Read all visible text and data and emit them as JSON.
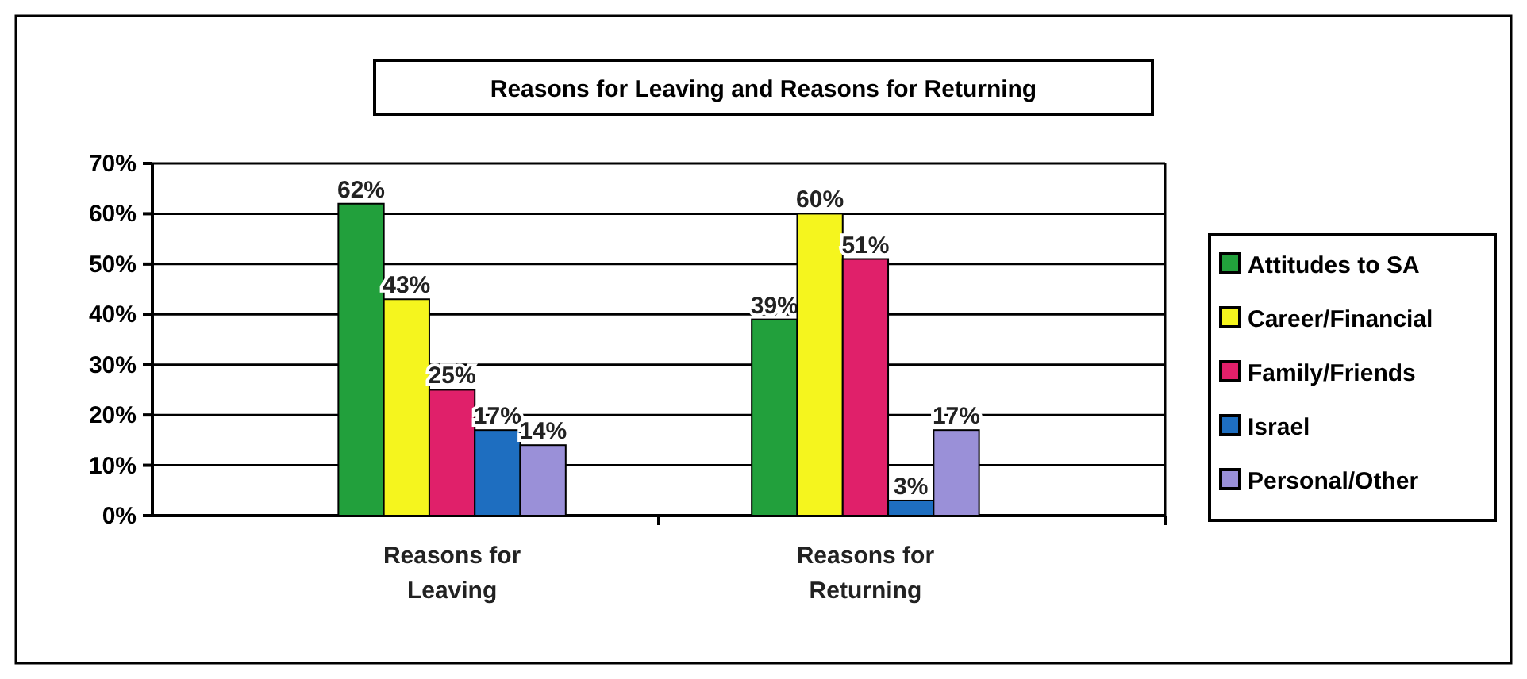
{
  "chart_data": {
    "type": "bar",
    "title": "Reasons for Leaving and Reasons for Returning",
    "categories": [
      "Reasons for Leaving",
      "Reasons for Returning"
    ],
    "series": [
      {
        "name": "Attitudes to SA",
        "color": "#22a03c",
        "values": [
          62,
          39
        ],
        "value_labels": [
          "62%",
          "39%"
        ]
      },
      {
        "name": "Career/Financial",
        "color": "#f5f51e",
        "values": [
          43,
          60
        ],
        "value_labels": [
          "43%",
          "60%"
        ]
      },
      {
        "name": "Family/Friends",
        "color": "#e0206a",
        "values": [
          25,
          51
        ],
        "value_labels": [
          "25%",
          "51%"
        ]
      },
      {
        "name": "Israel",
        "color": "#1e6ec0",
        "values": [
          17,
          3
        ],
        "value_labels": [
          "17%",
          "3%"
        ]
      },
      {
        "name": "Personal/Other",
        "color": "#9a90d8",
        "values": [
          14,
          17
        ],
        "value_labels": [
          "14%",
          "17%"
        ]
      }
    ],
    "ylim": [
      0,
      70
    ],
    "yticks": [
      {
        "value": 0,
        "label": "0%"
      },
      {
        "value": 10,
        "label": "10%"
      },
      {
        "value": 20,
        "label": "20%"
      },
      {
        "value": 30,
        "label": "30%"
      },
      {
        "value": 40,
        "label": "40%"
      },
      {
        "value": 50,
        "label": "50%"
      },
      {
        "value": 60,
        "label": "60%"
      },
      {
        "value": 70,
        "label": "70%"
      }
    ],
    "grid": "y",
    "legend": "right"
  }
}
